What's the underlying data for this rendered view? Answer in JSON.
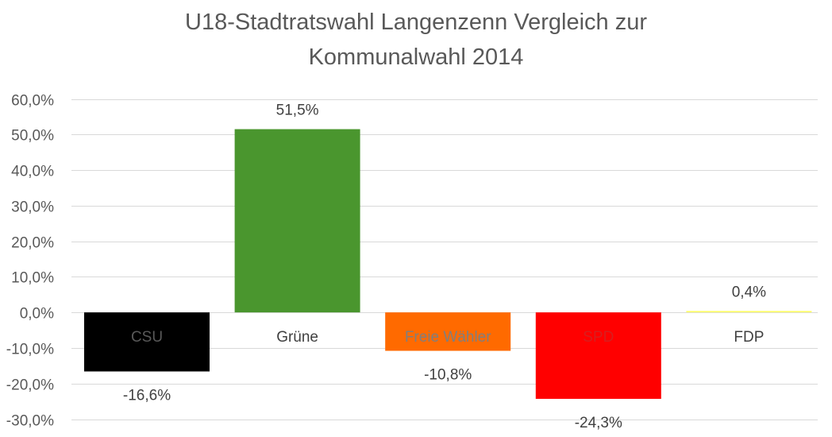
{
  "chart_data": {
    "type": "bar",
    "title": [
      "U18-Stadtratswahl Langenzenn Vergleich zur",
      "Kommunalwahl 2014"
    ],
    "xlabel": "",
    "ylabel": "",
    "categories": [
      "CSU",
      "Grüne",
      "Freie Wähler",
      "SPD",
      "FDP"
    ],
    "values": [
      -16.6,
      51.5,
      -10.8,
      -24.3,
      0.4
    ],
    "data_labels": [
      "-16,6%",
      "51,5%",
      "-10,8%",
      "-24,3%",
      "0,4%"
    ],
    "bar_colors": [
      "#000000",
      "#4a962e",
      "#ff6a00",
      "#ff0000",
      "#ffff66"
    ],
    "category_label_colors": [
      "#595959",
      "#404040",
      "#7f7f7f",
      "#d81e1e",
      "#404040"
    ],
    "ylim": [
      -30,
      60
    ],
    "yticks": [
      60,
      50,
      40,
      30,
      20,
      10,
      0,
      -10,
      -20,
      -30
    ],
    "ytick_labels": [
      "60,0%",
      "50,0%",
      "40,0%",
      "30,0%",
      "20,0%",
      "10,0%",
      "0,0%",
      "-10,0%",
      "-20,0%",
      "-30,0%"
    ],
    "grid": true,
    "legend": false,
    "gridline_color": "#d9d9d9"
  }
}
